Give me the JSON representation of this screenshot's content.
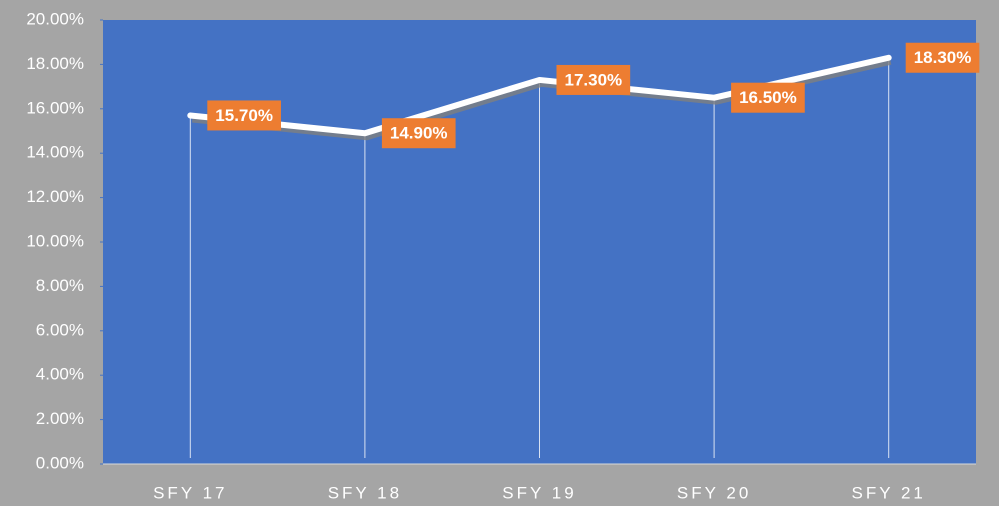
{
  "chart_data": {
    "type": "line",
    "categories": [
      "SFY 17",
      "SFY 18",
      "SFY 19",
      "SFY 20",
      "SFY 21"
    ],
    "series": [
      {
        "color": "#ffffff",
        "values": [
          15.7,
          14.9,
          17.3,
          16.5,
          18.3
        ],
        "value_labels": [
          "15.70%",
          "14.90%",
          "17.30%",
          "16.50%",
          "18.30%"
        ]
      }
    ],
    "ylim": [
      0,
      20
    ],
    "yticks": [
      {
        "value": 0,
        "label": "0.00%"
      },
      {
        "value": 2,
        "label": "2.00%"
      },
      {
        "value": 4,
        "label": "4.00%"
      },
      {
        "value": 6,
        "label": "6.00%"
      },
      {
        "value": 8,
        "label": "8.00%"
      },
      {
        "value": 10,
        "label": "10.00%"
      },
      {
        "value": 12,
        "label": "12.00%"
      },
      {
        "value": 14,
        "label": "14.00%"
      },
      {
        "value": 16,
        "label": "16.00%"
      },
      {
        "value": 18,
        "label": "18.00%"
      },
      {
        "value": 20,
        "label": "20.00%"
      }
    ],
    "label_color": "#ed7d31",
    "plot_color": "#4472c4"
  }
}
